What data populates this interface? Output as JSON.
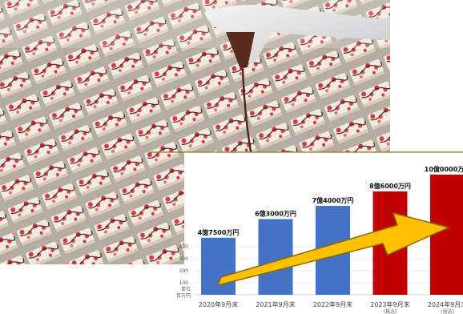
{
  "chart_data": {
    "type": "bar",
    "categories": [
      "2020年9月末",
      "2021年9月末",
      "2022年9月末",
      "2023年9月末",
      "2024年9月末"
    ],
    "category_notes": [
      "",
      "",
      "",
      "(見込)",
      "(見込)"
    ],
    "values": [
      475,
      630,
      740,
      860,
      1000
    ],
    "value_labels": [
      "4億7500万円",
      "6億3000万円",
      "7億4000万円",
      "8億6000万円",
      "10億0000万円"
    ],
    "bar_colors": [
      "#4472C4",
      "#4472C4",
      "#4472C4",
      "#C00000",
      "#C00000"
    ],
    "y_ticks": [
      100,
      200,
      300,
      400
    ],
    "ylabel_lines": [
      "単位",
      "百万円"
    ],
    "ylim": [
      0,
      1050
    ],
    "grid": true,
    "trend_arrow": {
      "color": "#FFC000",
      "outline": "#8B6A00"
    },
    "title": "",
    "xlabel": ""
  },
  "photo": {
    "subject": "chocolate-drizzle-on-raspberry-cakes",
    "colors": {
      "base": "#b9b1a8",
      "cake": "#f3ede2",
      "berry": "#d23a45",
      "chocolate": "#4a2417",
      "bag": "#e9e9ea"
    }
  },
  "divider_color": "#8a7a2a"
}
